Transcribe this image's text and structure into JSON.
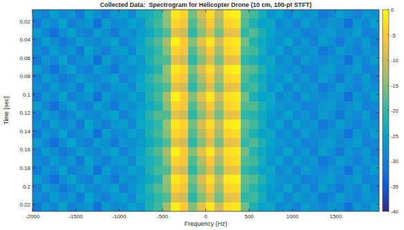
{
  "chart_data": {
    "type": "heatmap",
    "title": "Collected Data:  Spectrogram for Helicopter Drone (10 cm, 100-pt STFT)",
    "x_label": "Frequency (Hz)",
    "y_label": "Time [sec]",
    "x": [
      -1950,
      -1850,
      -1750,
      -1650,
      -1550,
      -1450,
      -1350,
      -1250,
      -1150,
      -1050,
      -950,
      -850,
      -750,
      -650,
      -550,
      -450,
      -350,
      -250,
      -150,
      -50,
      50,
      150,
      250,
      350,
      450,
      550,
      650,
      750,
      850,
      950,
      1050,
      1150,
      1250,
      1350,
      1450,
      1550,
      1650,
      1750,
      1850,
      1950
    ],
    "y": [
      0.0125,
      0.0225,
      0.0325,
      0.0425,
      0.0525,
      0.0625,
      0.0725,
      0.0825,
      0.0925,
      0.1025,
      0.1125,
      0.1225,
      0.1325,
      0.1425,
      0.1525,
      0.1625,
      0.1725,
      0.1825,
      0.1925,
      0.2025,
      0.2125,
      0.2225
    ],
    "cells": [
      [
        -28,
        -30,
        -26,
        -29,
        -27,
        -31,
        -25,
        -28,
        -30,
        -27,
        -26,
        -29,
        -24,
        -23,
        -20,
        -14,
        -2,
        -4,
        -16,
        -9,
        -3,
        -11,
        -2,
        -1,
        -17,
        -19,
        -23,
        -27,
        -25,
        -29,
        -26,
        -28,
        -27,
        -31,
        -29,
        -26,
        -28,
        -30,
        -27,
        -28
      ],
      [
        -31,
        -27,
        -29,
        -25,
        -30,
        -28,
        -27,
        -32,
        -26,
        -29,
        -28,
        -25,
        -27,
        -22,
        -19,
        -15,
        -4,
        -6,
        -18,
        -12,
        -5,
        -13,
        -4,
        -3,
        -18,
        -22,
        -25,
        -24,
        -29,
        -27,
        -30,
        -26,
        -28,
        -29,
        -27,
        -28,
        -32,
        -27,
        -29,
        -26
      ],
      [
        -26,
        -29,
        -32,
        -28,
        -25,
        -29,
        -30,
        -26,
        -28,
        -31,
        -27,
        -28,
        -26,
        -24,
        -21,
        -18,
        -8,
        -10,
        -20,
        -15,
        -9,
        -16,
        -8,
        -7,
        -20,
        -18,
        -22,
        -25,
        -27,
        -28,
        -27,
        -30,
        -29,
        -27,
        -26,
        -29,
        -28,
        -26,
        -30,
        -29
      ],
      [
        -30,
        -26,
        -28,
        -31,
        -29,
        -26,
        -28,
        -29,
        -27,
        -25,
        -30,
        -27,
        -25,
        -21,
        -18,
        -13,
        -1,
        -5,
        -15,
        -8,
        -2,
        -10,
        -3,
        -2,
        -16,
        -21,
        -24,
        -26,
        -28,
        -25,
        -29,
        -27,
        -30,
        -26,
        -28,
        -31,
        -27,
        -29,
        -26,
        -30
      ],
      [
        -28,
        -30,
        -26,
        -29,
        -27,
        -31,
        -25,
        -28,
        -30,
        -27,
        -26,
        -29,
        -24,
        -23,
        -20,
        -15,
        -4,
        -6,
        -18,
        -12,
        -5,
        -13,
        -4,
        -3,
        -18,
        -19,
        -23,
        -27,
        -25,
        -29,
        -26,
        -28,
        -27,
        -31,
        -29,
        -26,
        -28,
        -30,
        -27,
        -28
      ],
      [
        -31,
        -27,
        -29,
        -25,
        -30,
        -28,
        -27,
        -32,
        -26,
        -29,
        -28,
        -25,
        -27,
        -22,
        -19,
        -18,
        -8,
        -10,
        -20,
        -15,
        -9,
        -16,
        -8,
        -7,
        -20,
        -22,
        -25,
        -24,
        -29,
        -27,
        -30,
        -26,
        -28,
        -29,
        -27,
        -28,
        -32,
        -27,
        -29,
        -26
      ],
      [
        -26,
        -29,
        -32,
        -28,
        -25,
        -29,
        -30,
        -26,
        -28,
        -31,
        -27,
        -28,
        -26,
        -24,
        -21,
        -14,
        -2,
        -4,
        -16,
        -9,
        -3,
        -11,
        -2,
        -1,
        -17,
        -18,
        -22,
        -25,
        -27,
        -28,
        -27,
        -30,
        -29,
        -27,
        -26,
        -29,
        -28,
        -26,
        -30,
        -29
      ],
      [
        -30,
        -26,
        -28,
        -31,
        -29,
        -26,
        -28,
        -29,
        -27,
        -25,
        -30,
        -27,
        -25,
        -21,
        -18,
        -15,
        -4,
        -6,
        -18,
        -12,
        -5,
        -13,
        -4,
        -3,
        -18,
        -21,
        -24,
        -26,
        -28,
        -25,
        -29,
        -27,
        -30,
        -26,
        -28,
        -31,
        -27,
        -29,
        -26,
        -30
      ],
      [
        -28,
        -30,
        -26,
        -29,
        -27,
        -31,
        -25,
        -28,
        -30,
        -27,
        -26,
        -29,
        -24,
        -23,
        -20,
        -18,
        -8,
        -10,
        -20,
        -15,
        -9,
        -16,
        -8,
        -7,
        -20,
        -19,
        -23,
        -27,
        -25,
        -29,
        -26,
        -28,
        -27,
        -31,
        -29,
        -26,
        -28,
        -30,
        -27,
        -28
      ],
      [
        -31,
        -27,
        -29,
        -25,
        -30,
        -28,
        -27,
        -32,
        -26,
        -29,
        -28,
        -25,
        -27,
        -22,
        -19,
        -13,
        -1,
        -5,
        -15,
        -8,
        -2,
        -10,
        -3,
        -2,
        -16,
        -22,
        -25,
        -24,
        -29,
        -27,
        -30,
        -26,
        -28,
        -29,
        -27,
        -28,
        -32,
        -27,
        -29,
        -26
      ],
      [
        -26,
        -29,
        -32,
        -28,
        -25,
        -29,
        -30,
        -26,
        -28,
        -31,
        -27,
        -28,
        -26,
        -24,
        -21,
        -15,
        -4,
        -6,
        -18,
        -12,
        -5,
        -13,
        -4,
        -3,
        -18,
        -18,
        -22,
        -25,
        -27,
        -28,
        -27,
        -30,
        -29,
        -27,
        -26,
        -29,
        -28,
        -26,
        -30,
        -29
      ],
      [
        -30,
        -26,
        -28,
        -31,
        -29,
        -26,
        -28,
        -29,
        -27,
        -25,
        -30,
        -27,
        -25,
        -21,
        -18,
        -18,
        -8,
        -10,
        -20,
        -15,
        -9,
        -16,
        -8,
        -7,
        -20,
        -21,
        -24,
        -26,
        -28,
        -25,
        -29,
        -27,
        -30,
        -26,
        -28,
        -31,
        -27,
        -29,
        -26,
        -30
      ],
      [
        -28,
        -30,
        -26,
        -29,
        -27,
        -31,
        -25,
        -28,
        -30,
        -27,
        -26,
        -29,
        -24,
        -23,
        -20,
        -14,
        -2,
        -4,
        -16,
        -9,
        -3,
        -11,
        -2,
        -1,
        -17,
        -19,
        -23,
        -27,
        -25,
        -29,
        -26,
        -28,
        -27,
        -31,
        -29,
        -26,
        -28,
        -30,
        -27,
        -28
      ],
      [
        -31,
        -27,
        -29,
        -25,
        -30,
        -28,
        -27,
        -32,
        -26,
        -29,
        -28,
        -25,
        -27,
        -22,
        -19,
        -15,
        -4,
        -6,
        -18,
        -12,
        -5,
        -13,
        -4,
        -3,
        -18,
        -22,
        -25,
        -24,
        -29,
        -27,
        -30,
        -26,
        -28,
        -29,
        -27,
        -28,
        -32,
        -27,
        -29,
        -26
      ],
      [
        -26,
        -29,
        -32,
        -28,
        -25,
        -29,
        -30,
        -26,
        -28,
        -31,
        -27,
        -28,
        -26,
        -24,
        -21,
        -18,
        -8,
        -10,
        -20,
        -15,
        -9,
        -16,
        -8,
        -7,
        -20,
        -18,
        -22,
        -25,
        -27,
        -28,
        -27,
        -30,
        -29,
        -27,
        -26,
        -29,
        -28,
        -26,
        -30,
        -29
      ],
      [
        -30,
        -26,
        -28,
        -31,
        -29,
        -26,
        -28,
        -29,
        -27,
        -25,
        -30,
        -27,
        -25,
        -21,
        -18,
        -13,
        -1,
        -5,
        -15,
        -8,
        -2,
        -10,
        -3,
        -2,
        -16,
        -21,
        -24,
        -26,
        -28,
        -25,
        -29,
        -27,
        -30,
        -26,
        -28,
        -31,
        -27,
        -29,
        -26,
        -30
      ],
      [
        -28,
        -30,
        -26,
        -29,
        -27,
        -31,
        -25,
        -28,
        -30,
        -27,
        -26,
        -29,
        -24,
        -23,
        -20,
        -15,
        -4,
        -6,
        -18,
        -12,
        -5,
        -13,
        -4,
        -3,
        -18,
        -19,
        -23,
        -27,
        -25,
        -29,
        -26,
        -28,
        -27,
        -31,
        -29,
        -26,
        -28,
        -30,
        -27,
        -28
      ],
      [
        -31,
        -27,
        -29,
        -25,
        -30,
        -28,
        -27,
        -32,
        -26,
        -29,
        -28,
        -25,
        -27,
        -22,
        -19,
        -18,
        -8,
        -10,
        -20,
        -15,
        -9,
        -16,
        -8,
        -7,
        -20,
        -22,
        -25,
        -24,
        -29,
        -27,
        -30,
        -26,
        -28,
        -29,
        -27,
        -28,
        -32,
        -27,
        -29,
        -26
      ],
      [
        -26,
        -29,
        -32,
        -28,
        -25,
        -29,
        -30,
        -26,
        -28,
        -31,
        -27,
        -28,
        -26,
        -24,
        -21,
        -14,
        -2,
        -4,
        -16,
        -9,
        -3,
        -11,
        -2,
        -1,
        -17,
        -18,
        -22,
        -25,
        -27,
        -28,
        -27,
        -30,
        -29,
        -27,
        -26,
        -29,
        -28,
        -26,
        -30,
        -29
      ],
      [
        -30,
        -26,
        -28,
        -31,
        -29,
        -26,
        -28,
        -29,
        -27,
        -25,
        -30,
        -27,
        -25,
        -21,
        -18,
        -15,
        -4,
        -6,
        -18,
        -12,
        -5,
        -13,
        -4,
        -3,
        -18,
        -21,
        -24,
        -26,
        -28,
        -25,
        -29,
        -27,
        -30,
        -26,
        -28,
        -31,
        -27,
        -29,
        -26,
        -30
      ],
      [
        -28,
        -30,
        -26,
        -29,
        -27,
        -31,
        -25,
        -28,
        -30,
        -27,
        -26,
        -29,
        -24,
        -23,
        -20,
        -18,
        -8,
        -10,
        -20,
        -15,
        -9,
        -16,
        -8,
        -7,
        -20,
        -19,
        -23,
        -27,
        -25,
        -29,
        -26,
        -28,
        -27,
        -31,
        -29,
        -26,
        -28,
        -30,
        -27,
        -28
      ],
      [
        -31,
        -27,
        -29,
        -25,
        -30,
        -28,
        -27,
        -32,
        -26,
        -29,
        -28,
        -25,
        -27,
        -22,
        -19,
        -13,
        -1,
        -5,
        -15,
        -8,
        -2,
        -10,
        -3,
        -2,
        -16,
        -22,
        -25,
        -24,
        -29,
        -27,
        -30,
        -26,
        -28,
        -29,
        -27,
        -28,
        -32,
        -27,
        -29,
        -26
      ]
    ],
    "xlim": [
      -2000,
      2000
    ],
    "ylim": [
      0.0075,
      0.2275
    ],
    "xticks": [
      -2000,
      -1500,
      -1000,
      -500,
      0,
      500,
      1000,
      1500
    ],
    "yticks": [
      0.02,
      0.04,
      0.06,
      0.08,
      0.1,
      0.12,
      0.14,
      0.16,
      0.18,
      0.2,
      0.22
    ],
    "colorbar": {
      "range": [
        -40,
        0
      ],
      "ticks": [
        0,
        -5,
        -10,
        -15,
        -20,
        -25,
        -30,
        -35,
        -40
      ]
    }
  }
}
